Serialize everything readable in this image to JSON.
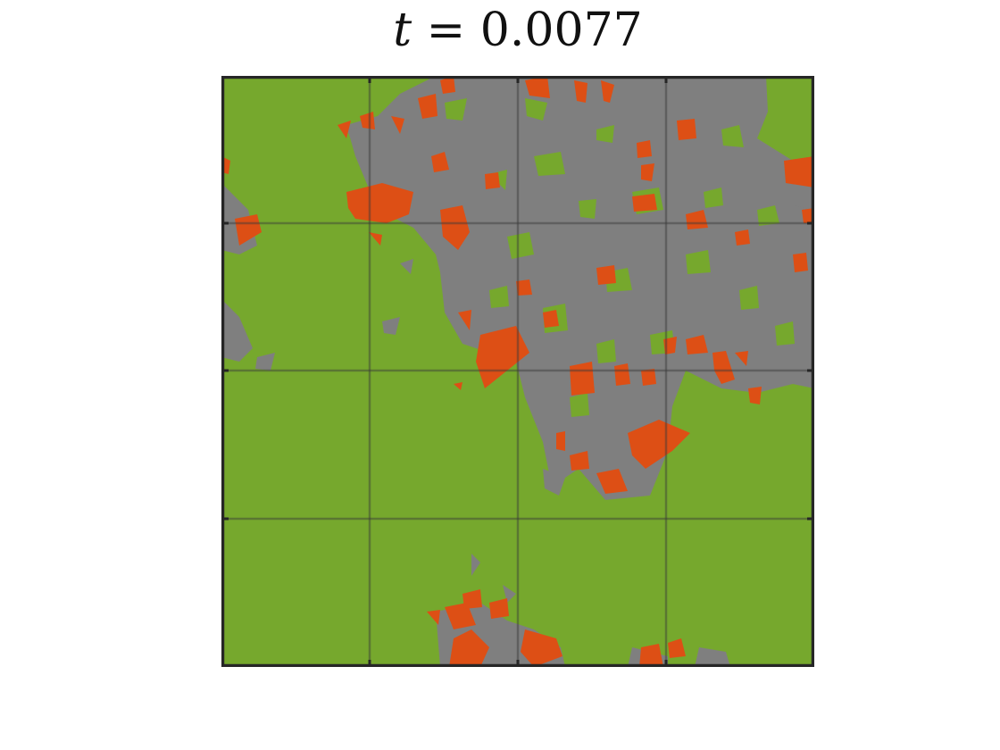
{
  "title": {
    "variable": "t",
    "equals": " = ",
    "value": "0.0077"
  },
  "colors": {
    "background_region": "#76a82d",
    "gray_region": "#7f7f7f",
    "orange_region": "#dd4f15",
    "axes_frame": "#262626",
    "gridline": "#3a3a3a"
  },
  "grid": {
    "divisions": 4,
    "visible": true
  }
}
